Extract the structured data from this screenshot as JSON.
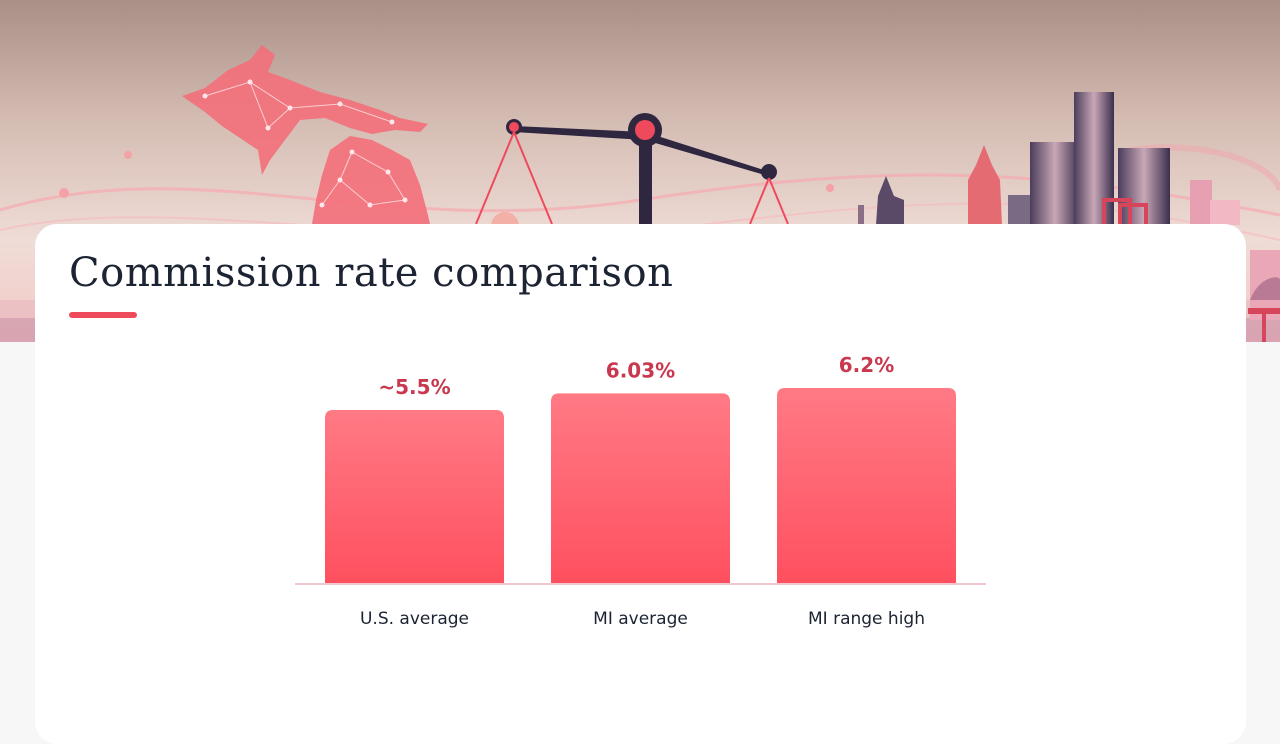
{
  "page": {
    "accent_color": "#ef4a5c",
    "title_color": "#1c2433"
  },
  "hero": {
    "icons": [
      "michigan-map-icon",
      "balance-scale-icon",
      "city-skyline-icon"
    ]
  },
  "card": {
    "title": "Commission rate comparison"
  },
  "chart_data": {
    "type": "bar",
    "categories": [
      "U.S. average",
      "MI average",
      "MI range high"
    ],
    "values": [
      5.5,
      6.03,
      6.2
    ],
    "value_labels": [
      "~5.5%",
      "6.03%",
      "6.2%"
    ],
    "ylim": [
      0,
      6.2
    ],
    "bar_color_top": "#ff7a85",
    "bar_color_bottom": "#ff505f",
    "label_color": "#c9384e",
    "axis_color": "#f3c7cd",
    "category_color": "#1c2433",
    "grid": false
  }
}
